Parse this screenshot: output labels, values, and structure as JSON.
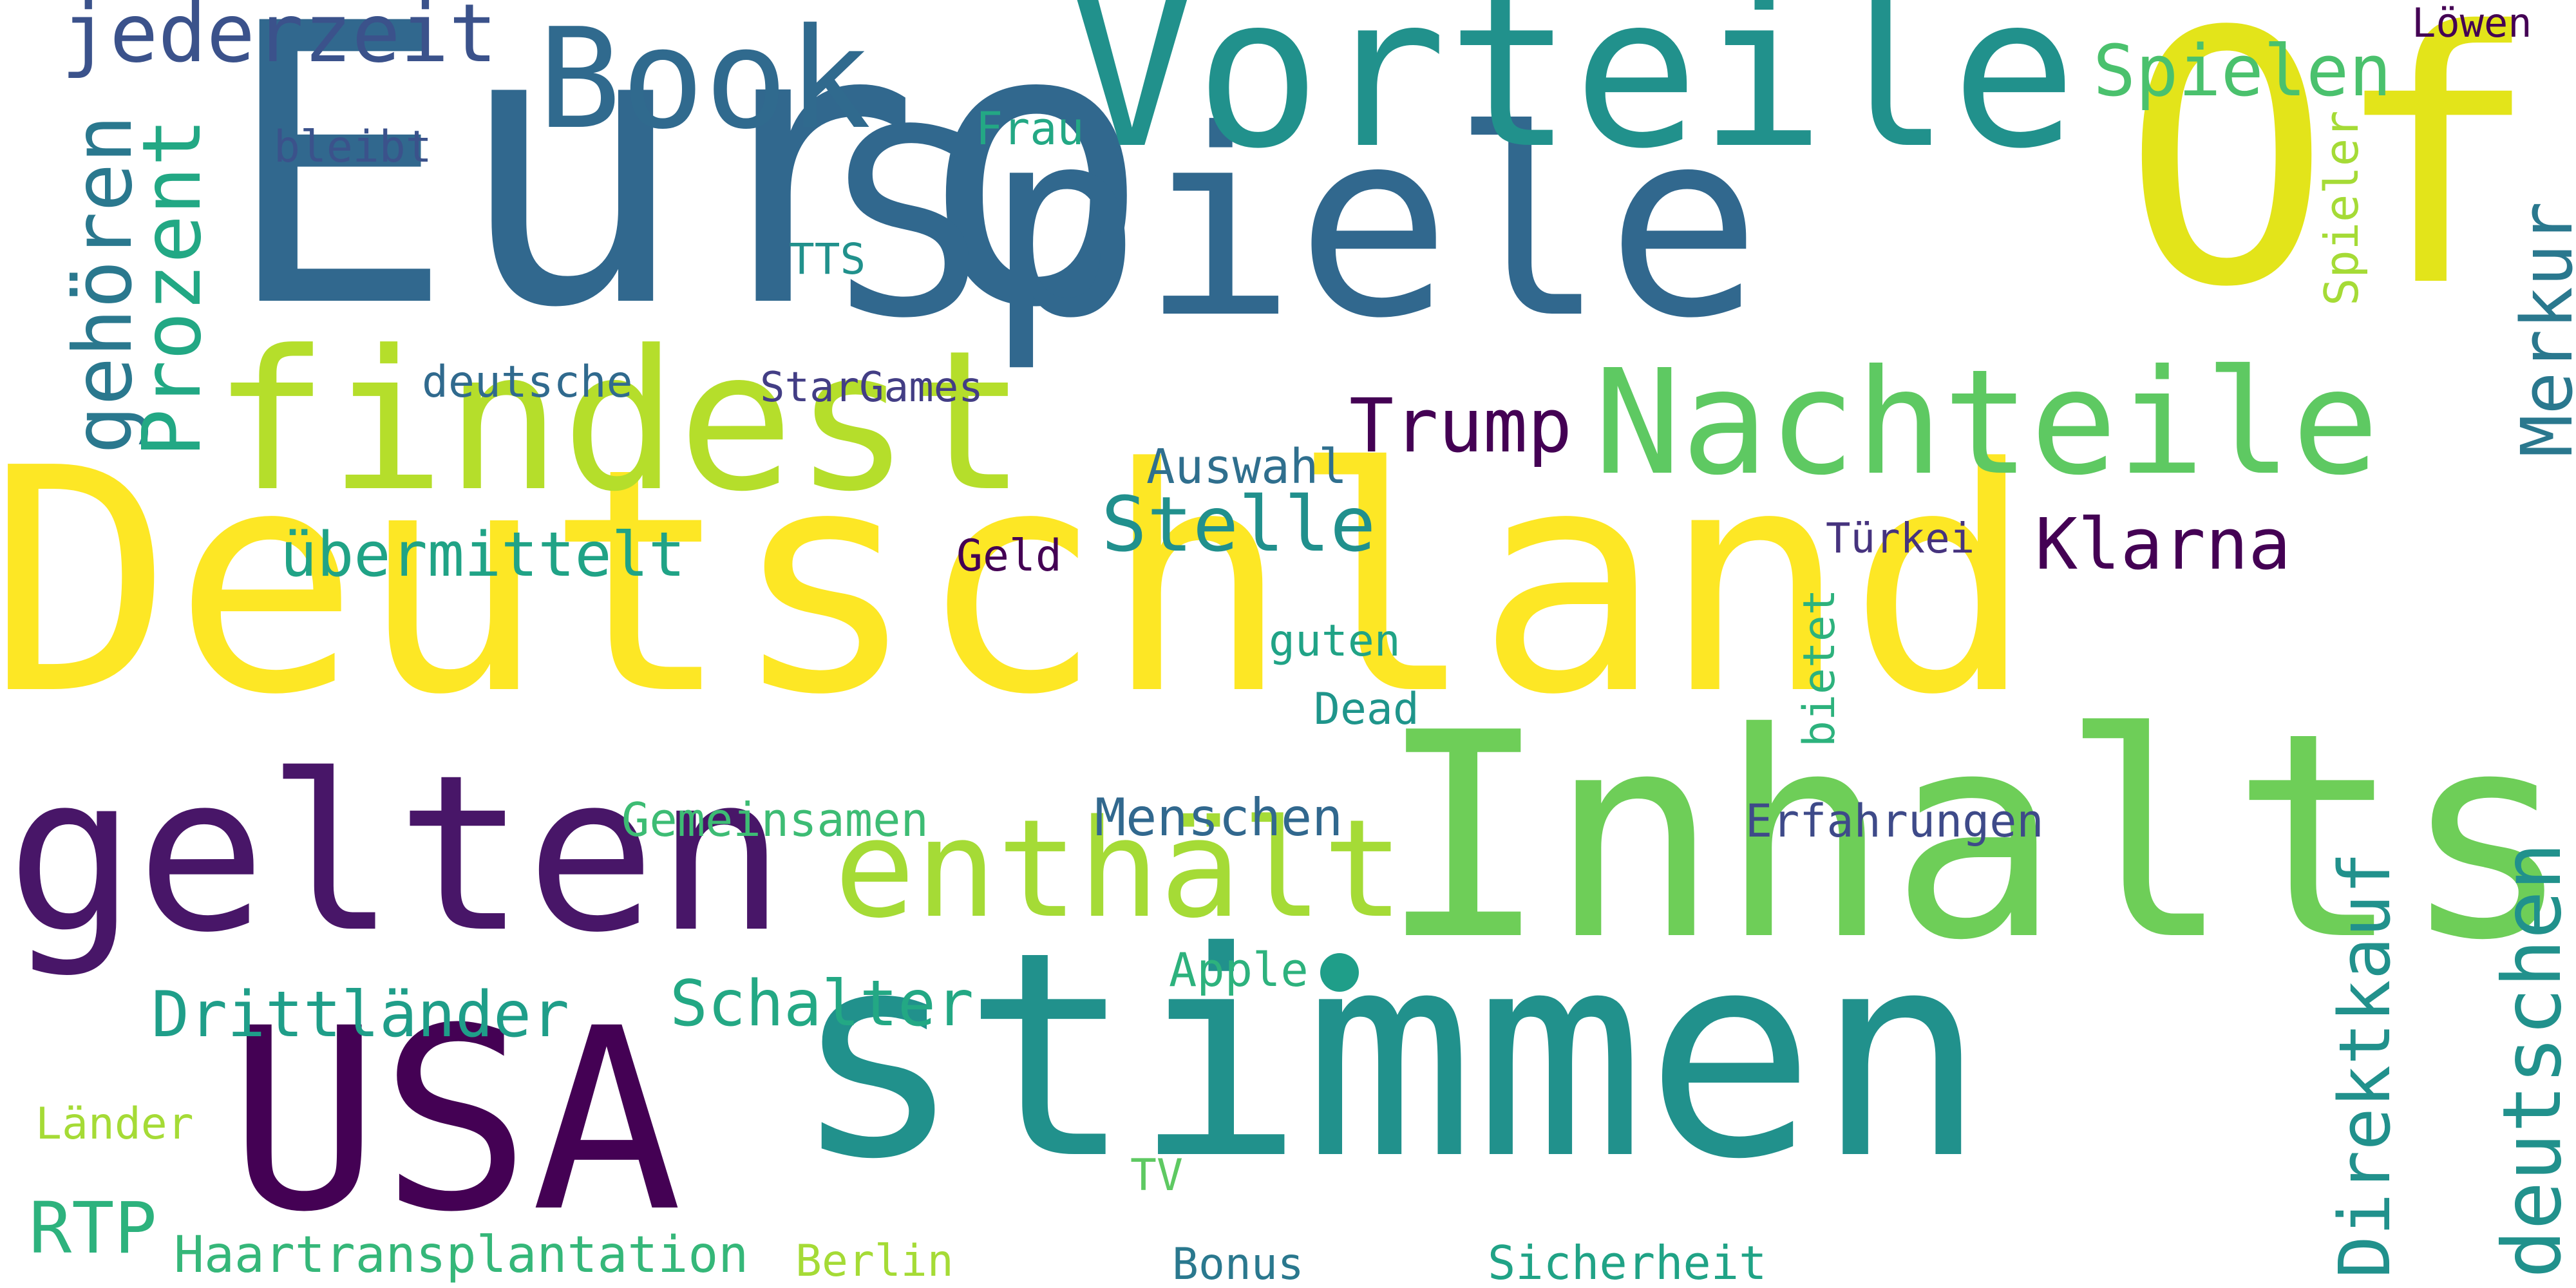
{
  "words": [
    {
      "text": "Deutschland",
      "color": "#fde725"
    },
    {
      "text": "Euro",
      "color": "#31688e"
    },
    {
      "text": "Spiele",
      "color": "#31688e"
    },
    {
      "text": "Of",
      "color": "#e3e41a"
    },
    {
      "text": "Vorteile",
      "color": "#21918c"
    },
    {
      "text": "stimmen",
      "color": "#21918c"
    },
    {
      "text": "Inhalts",
      "color": "#6ece58"
    },
    {
      "text": "gelten",
      "color": "#481668"
    },
    {
      "text": "findest",
      "color": "#b5de2b"
    },
    {
      "text": "USA",
      "color": "#440154"
    },
    {
      "text": "Nachteile",
      "color": "#5ec962"
    },
    {
      "text": "enthält",
      "color": "#a5db36"
    },
    {
      "text": "Book",
      "color": "#306a8e"
    },
    {
      "text": "jederzeit",
      "color": "#3b528b"
    },
    {
      "text": "gehören",
      "color": "#2a788e"
    },
    {
      "text": "Prozent",
      "color": "#22a884"
    },
    {
      "text": "Spielen",
      "color": "#4ac16d"
    },
    {
      "text": "Löwen",
      "color": "#440154"
    },
    {
      "text": "Merkur",
      "color": "#2a788e"
    },
    {
      "text": "Spieler",
      "color": "#a5db36"
    },
    {
      "text": "Frau",
      "color": "#23a884"
    },
    {
      "text": "bleibt",
      "color": "#3b528b"
    },
    {
      "text": "TTS",
      "color": "#21918c"
    },
    {
      "text": "deutsche",
      "color": "#306a8e"
    },
    {
      "text": "StarGames",
      "color": "#433e85"
    },
    {
      "text": "Trump",
      "color": "#440154"
    },
    {
      "text": "Auswahl",
      "color": "#2f6f8e"
    },
    {
      "text": "Stelle",
      "color": "#21908d"
    },
    {
      "text": "übermittelt",
      "color": "#20a386"
    },
    {
      "text": "Geld",
      "color": "#440154"
    },
    {
      "text": "Türkei",
      "color": "#46337e"
    },
    {
      "text": "Klarna",
      "color": "#440154"
    },
    {
      "text": "guten",
      "color": "#20a386"
    },
    {
      "text": "Dead",
      "color": "#1f958b"
    },
    {
      "text": "bietet",
      "color": "#2db27d"
    },
    {
      "text": "Gemeinsamen",
      "color": "#3dbc74"
    },
    {
      "text": "Menschen",
      "color": "#31688e"
    },
    {
      "text": "Erfahrungen",
      "color": "#3e4a89"
    },
    {
      "text": "Direktkauf",
      "color": "#21918c"
    },
    {
      "text": "deutschen",
      "color": "#21918c"
    },
    {
      "text": "Drittländer",
      "color": "#1f9e89"
    },
    {
      "text": "Schalter",
      "color": "#23a884"
    },
    {
      "text": "Apple",
      "color": "#2db27d"
    },
    {
      "text": "Länder",
      "color": "#a5db36"
    },
    {
      "text": "RTP",
      "color": "#2db27d"
    },
    {
      "text": "TV",
      "color": "#5ec962"
    },
    {
      "text": "Haartransplantation",
      "color": "#35b779"
    },
    {
      "text": "Berlin",
      "color": "#a5db36"
    },
    {
      "text": "Bonus",
      "color": "#2a788e"
    },
    {
      "text": "Sicherheit",
      "color": "#20a386"
    }
  ],
  "dot_color": "#1f9e89"
}
